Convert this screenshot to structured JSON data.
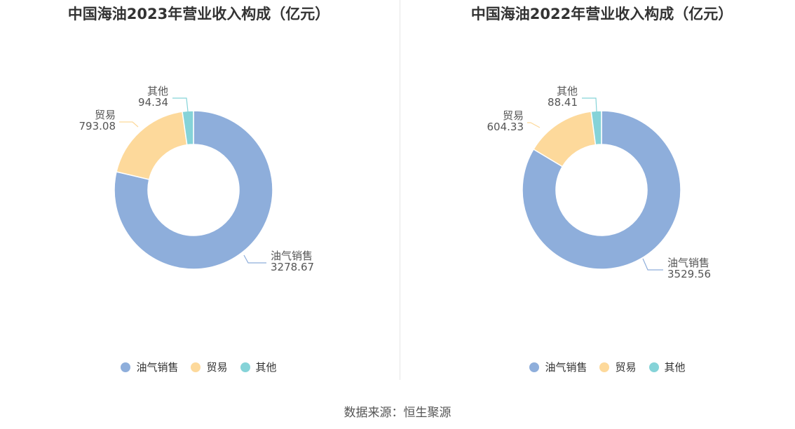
{
  "colors": {
    "oil_gas": "#8eaedb",
    "trade": "#fdd99b",
    "other": "#85d3d8"
  },
  "source": "数据来源：恒生聚源",
  "chart_data": [
    {
      "type": "pie",
      "title": "中国海油2023年营业收入构成（亿元）",
      "slices": [
        {
          "name": "油气销售",
          "value": 3278.67,
          "value_label": "3278.67"
        },
        {
          "name": "贸易",
          "value": 793.08,
          "value_label": "793.08"
        },
        {
          "name": "其他",
          "value": 94.34,
          "value_label": "94.34"
        }
      ],
      "legend": [
        "油气销售",
        "贸易",
        "其他"
      ],
      "legend_position": "bottom"
    },
    {
      "type": "pie",
      "title": "中国海油2022年营业收入构成（亿元）",
      "slices": [
        {
          "name": "油气销售",
          "value": 3529.56,
          "value_label": "3529.56"
        },
        {
          "name": "贸易",
          "value": 604.33,
          "value_label": "604.33"
        },
        {
          "name": "其他",
          "value": 88.41,
          "value_label": "88.41"
        }
      ],
      "legend": [
        "油气销售",
        "贸易",
        "其他"
      ],
      "legend_position": "bottom"
    }
  ]
}
